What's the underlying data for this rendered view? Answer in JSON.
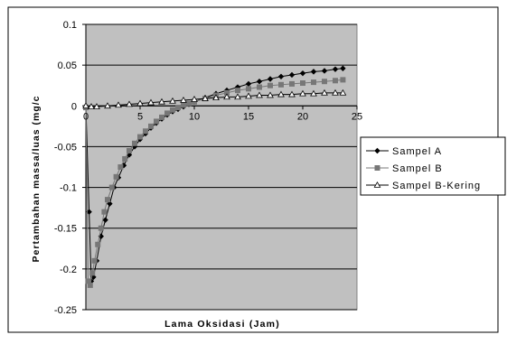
{
  "chart_data": {
    "type": "line",
    "xlabel": "Lama Oksidasi (Jam)",
    "ylabel": "Pertambahan massa/luas (mg/c",
    "xlim": [
      0,
      25
    ],
    "ylim": [
      -0.25,
      0.1
    ],
    "x_ticks": [
      0,
      5,
      10,
      15,
      20,
      25
    ],
    "y_ticks": [
      -0.25,
      -0.2,
      -0.15,
      -0.1,
      -0.05,
      0,
      0.05,
      0.1
    ],
    "x_tick_labels": [
      "0",
      "5",
      "10",
      "15",
      "20",
      "25"
    ],
    "y_tick_labels": [
      "-0.25",
      "-0.2",
      "-0.15",
      "-0.1",
      "-0.05",
      "0",
      "0.05",
      "0.1"
    ],
    "grid": "horizontal",
    "plot_background": "#c0c0c0",
    "legend_position": "right",
    "series": [
      {
        "name": "Sampel A",
        "color": "#000000",
        "marker": "diamond",
        "points": [
          [
            0,
            0
          ],
          [
            0.3,
            -0.13
          ],
          [
            0.5,
            -0.215
          ],
          [
            0.7,
            -0.21
          ],
          [
            1,
            -0.19
          ],
          [
            1.4,
            -0.16
          ],
          [
            1.8,
            -0.14
          ],
          [
            2.2,
            -0.12
          ],
          [
            2.6,
            -0.1
          ],
          [
            3,
            -0.088
          ],
          [
            3.5,
            -0.073
          ],
          [
            4,
            -0.06
          ],
          [
            4.5,
            -0.05
          ],
          [
            5,
            -0.041
          ],
          [
            5.5,
            -0.034
          ],
          [
            6,
            -0.027
          ],
          [
            6.5,
            -0.021
          ],
          [
            7,
            -0.016
          ],
          [
            7.5,
            -0.011
          ],
          [
            8,
            -0.007
          ],
          [
            8.5,
            -0.004
          ],
          [
            9,
            -0.001
          ],
          [
            9.5,
            0.002
          ],
          [
            10,
            0.005
          ],
          [
            11,
            0.01
          ],
          [
            12,
            0.015
          ],
          [
            13,
            0.019
          ],
          [
            14,
            0.023
          ],
          [
            15,
            0.027
          ],
          [
            16,
            0.03
          ],
          [
            17,
            0.033
          ],
          [
            18,
            0.036
          ],
          [
            19,
            0.038
          ],
          [
            20,
            0.04
          ],
          [
            21,
            0.042
          ],
          [
            22,
            0.043
          ],
          [
            23,
            0.045
          ],
          [
            23.7,
            0.046
          ]
        ]
      },
      {
        "name": "Sampel B",
        "color": "#777777",
        "marker": "square",
        "points": [
          [
            0,
            -0.002
          ],
          [
            0.2,
            -0.215
          ],
          [
            0.4,
            -0.22
          ],
          [
            0.6,
            -0.205
          ],
          [
            0.8,
            -0.19
          ],
          [
            1.1,
            -0.17
          ],
          [
            1.4,
            -0.15
          ],
          [
            1.7,
            -0.13
          ],
          [
            2,
            -0.115
          ],
          [
            2.4,
            -0.1
          ],
          [
            2.8,
            -0.087
          ],
          [
            3.2,
            -0.075
          ],
          [
            3.6,
            -0.065
          ],
          [
            4,
            -0.055
          ],
          [
            4.5,
            -0.046
          ],
          [
            5,
            -0.038
          ],
          [
            5.5,
            -0.031
          ],
          [
            6,
            -0.025
          ],
          [
            6.5,
            -0.019
          ],
          [
            7,
            -0.014
          ],
          [
            7.5,
            -0.009
          ],
          [
            8,
            -0.005
          ],
          [
            8.5,
            -0.002
          ],
          [
            9,
            0.001
          ],
          [
            9.5,
            0.003
          ],
          [
            10,
            0.005
          ],
          [
            11,
            0.009
          ],
          [
            12,
            0.013
          ],
          [
            13,
            0.016
          ],
          [
            14,
            0.019
          ],
          [
            15,
            0.021
          ],
          [
            16,
            0.023
          ],
          [
            17,
            0.025
          ],
          [
            18,
            0.026
          ],
          [
            19,
            0.027
          ],
          [
            20,
            0.028
          ],
          [
            21,
            0.029
          ],
          [
            22,
            0.03
          ],
          [
            23,
            0.031
          ],
          [
            23.7,
            0.032
          ]
        ]
      },
      {
        "name": "Sampel B-Kering",
        "color": "#000000",
        "marker": "triangle",
        "points": [
          [
            0,
            0
          ],
          [
            0.5,
            -0.001
          ],
          [
            1,
            -0.001
          ],
          [
            2,
            0
          ],
          [
            3,
            0.001
          ],
          [
            4,
            0.002
          ],
          [
            5,
            0.003
          ],
          [
            6,
            0.004
          ],
          [
            7,
            0.005
          ],
          [
            8,
            0.006
          ],
          [
            9,
            0.007
          ],
          [
            10,
            0.008
          ],
          [
            11,
            0.009
          ],
          [
            12,
            0.01
          ],
          [
            13,
            0.011
          ],
          [
            14,
            0.011
          ],
          [
            15,
            0.012
          ],
          [
            16,
            0.013
          ],
          [
            17,
            0.013
          ],
          [
            18,
            0.014
          ],
          [
            19,
            0.014
          ],
          [
            20,
            0.015
          ],
          [
            21,
            0.015
          ],
          [
            22,
            0.016
          ],
          [
            23,
            0.016
          ],
          [
            23.7,
            0.016
          ]
        ]
      }
    ]
  }
}
